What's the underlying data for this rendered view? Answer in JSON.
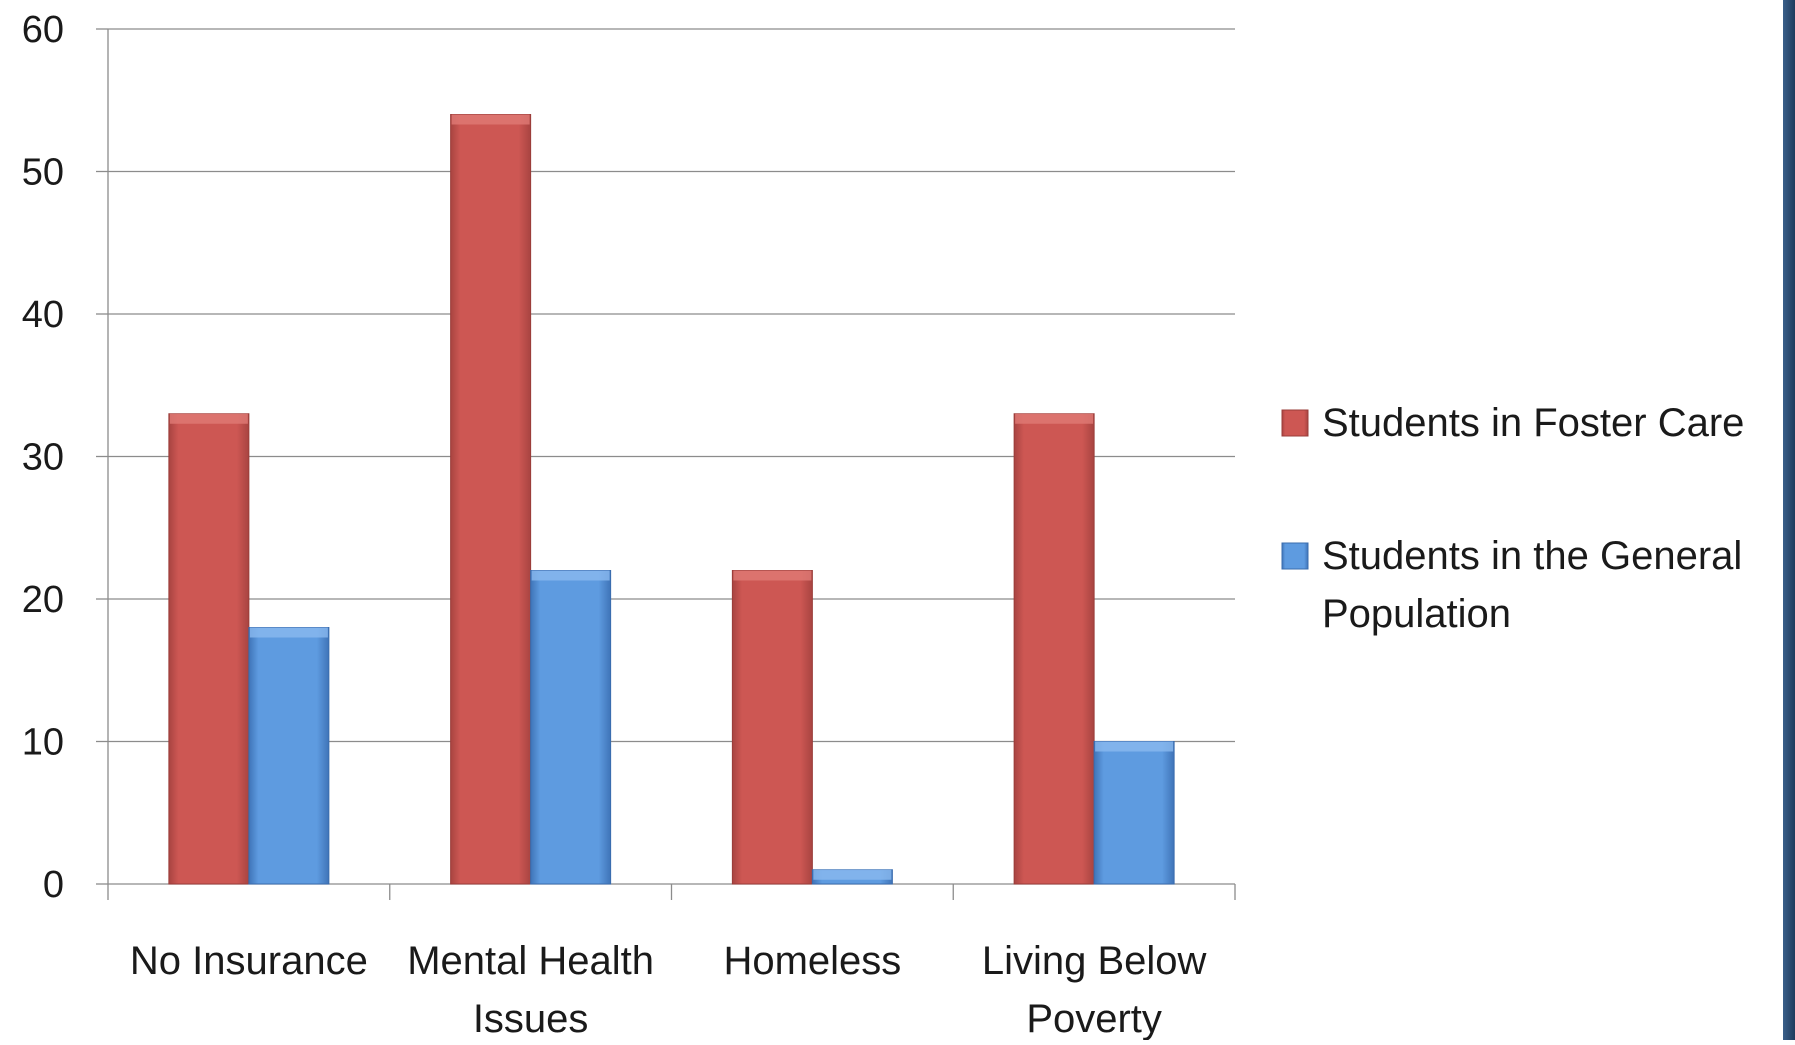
{
  "chart_data": {
    "type": "bar",
    "title": "",
    "xlabel": "",
    "ylabel": "",
    "categories": [
      [
        "No Insurance"
      ],
      [
        "Mental Health",
        "Issues"
      ],
      [
        "Homeless"
      ],
      [
        "Living Below",
        "Poverty"
      ]
    ],
    "series": [
      {
        "name": "Students in Foster Care",
        "color": "#c0504d",
        "values": [
          33,
          54,
          22,
          33
        ]
      },
      {
        "name": "Students in the General Population",
        "color": "#4f8fdc",
        "values": [
          18,
          22,
          1,
          10
        ]
      }
    ],
    "ylim": [
      0,
      60
    ],
    "yticks": [
      0,
      10,
      20,
      30,
      40,
      50,
      60
    ],
    "grid": true,
    "legend_position": "right",
    "legend": [
      {
        "lines": [
          "Students in Foster Care"
        ]
      },
      {
        "lines": [
          "Students in the General",
          "Population"
        ]
      }
    ]
  }
}
